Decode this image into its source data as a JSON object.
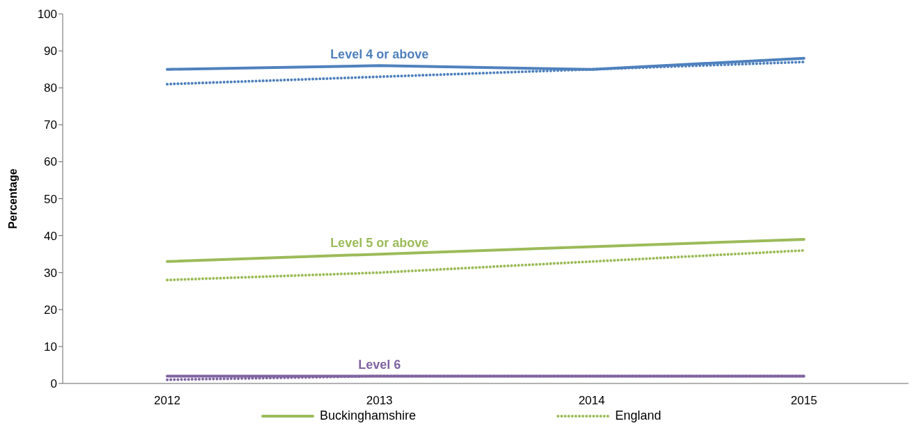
{
  "chart_data": {
    "type": "line",
    "ylabel": "Percentage",
    "categories": [
      "2012",
      "2013",
      "2014",
      "2015"
    ],
    "ylim": [
      0,
      100
    ],
    "yticks": [
      0,
      10,
      20,
      30,
      40,
      50,
      60,
      70,
      80,
      90,
      100
    ],
    "grid": false,
    "legend": "bottom",
    "marker": "none",
    "series": [
      {
        "color": "#4f81bd",
        "line_style": "solid",
        "values": [
          85,
          86,
          85,
          88
        ]
      },
      {
        "color": "#4f81bd",
        "line_style": "dotted",
        "values": [
          81,
          83,
          85,
          87
        ]
      },
      {
        "name": "Buckinghamshire",
        "color": "#9bbb59",
        "line_style": "solid",
        "values": [
          33,
          35,
          37,
          39
        ]
      },
      {
        "name": "England",
        "color": "#9bbb59",
        "line_style": "dotted",
        "values": [
          28,
          30,
          33,
          36
        ]
      },
      {
        "color": "#8064a2",
        "line_style": "solid",
        "values": [
          2,
          2,
          2,
          2
        ]
      },
      {
        "color": "#8064a2",
        "line_style": "dotted",
        "values": [
          1,
          2,
          2,
          2
        ]
      }
    ],
    "annotations": [
      "Level 4 or above",
      "Level 5 or above",
      "Level 6"
    ]
  }
}
